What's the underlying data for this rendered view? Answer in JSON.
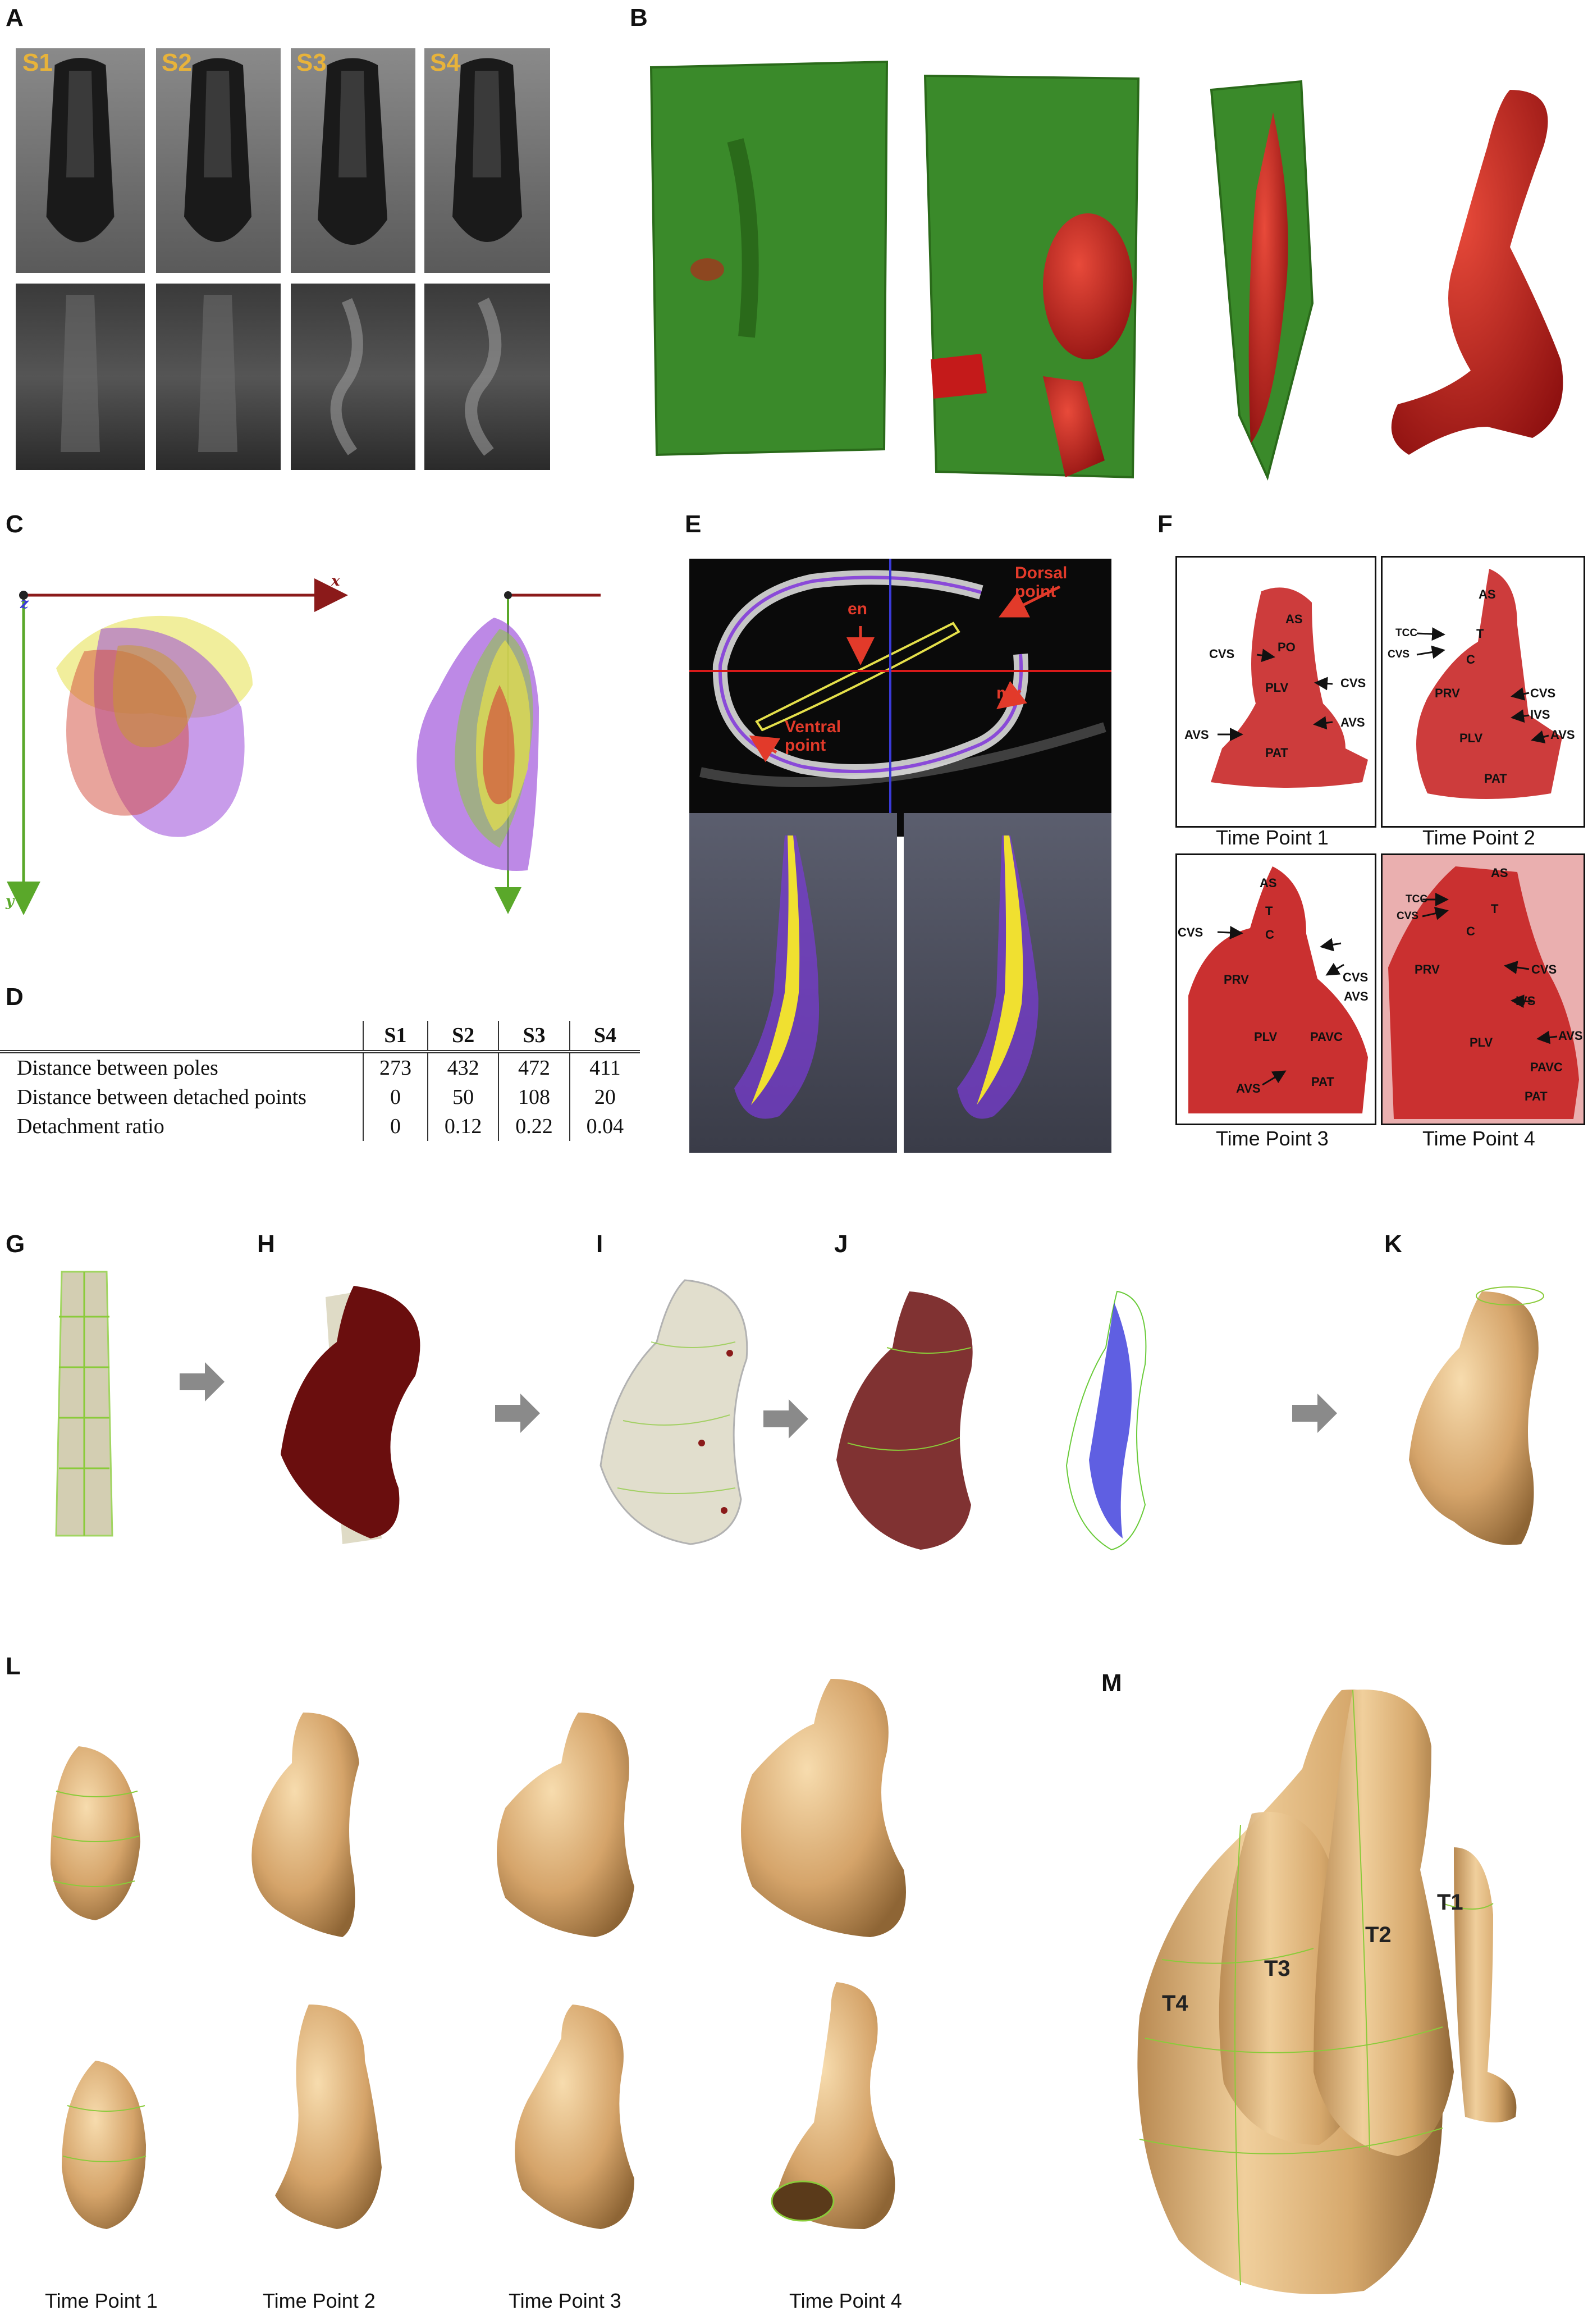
{
  "panels": {
    "A": "A",
    "B": "B",
    "C": "C",
    "D": "D",
    "E": "E",
    "F": "F",
    "G": "G",
    "H": "H",
    "I": "I",
    "J": "J",
    "K": "K",
    "L": "L",
    "M": "M"
  },
  "panel_a": {
    "stages": [
      "S1",
      "S2",
      "S3",
      "S4"
    ]
  },
  "panel_c": {
    "axis_x": "x",
    "axis_y": "y",
    "axis_z": "z"
  },
  "panel_d": {
    "columns": [
      "S1",
      "S2",
      "S3",
      "S4"
    ],
    "rows": [
      {
        "label": "Distance between poles",
        "values": [
          "273",
          "432",
          "472",
          "411"
        ]
      },
      {
        "label": "Distance between detached points",
        "values": [
          "0",
          "50",
          "108",
          "20"
        ]
      },
      {
        "label": "Detachment ratio",
        "values": [
          "0",
          "0.12",
          "0.22",
          "0.04"
        ]
      }
    ]
  },
  "panel_e": {
    "labels": {
      "dorsal": "Dorsal\npoint",
      "en": "en",
      "my": "my",
      "ventral": "Ventral\npoint"
    }
  },
  "panel_f": {
    "captions": [
      "Time Point 1",
      "Time Point 2",
      "Time Point 3",
      "Time Point 4"
    ],
    "tp1": {
      "as": "AS",
      "po": "PO",
      "cvs_l": "CVS",
      "cvs_r": "CVS",
      "plv": "PLV",
      "avs_l": "AVS",
      "avs_r": "AVS",
      "pat": "PAT"
    },
    "tp2": {
      "as": "AS",
      "tcc": "TCC",
      "t": "T",
      "cvs_l": "CVS",
      "c": "C",
      "prv": "PRV",
      "cvs_r": "CVS",
      "ivs": "IVS",
      "plv": "PLV",
      "avs": "AVS",
      "pat": "PAT"
    },
    "tp3": {
      "as": "AS",
      "t": "T",
      "cvs_l": "CVS",
      "c": "C",
      "prv": "PRV",
      "cvs_r": "CVS",
      "avs_r": "AVS",
      "plv": "PLV",
      "pavc": "PAVC",
      "avs_b": "AVS",
      "pat": "PAT"
    },
    "tp4": {
      "as": "AS",
      "tcc": "TCC",
      "cvs_l": "CVS",
      "t": "T",
      "c": "C",
      "prv": "PRV",
      "cvs_r": "CVS",
      "ivs": "IVS",
      "avs": "AVS",
      "plv": "PLV",
      "pavc": "PAVC",
      "pat": "PAT"
    }
  },
  "panel_l": {
    "captions": [
      "Time Point 1",
      "Time Point 2",
      "Time Point 3",
      "Time Point 4"
    ]
  },
  "panel_m": {
    "labels": [
      "T1",
      "T2",
      "T3",
      "T4"
    ]
  },
  "colors": {
    "tissue_green": "#3a8a2a",
    "heart_red": "#c41a1a",
    "model_tan": "#d9b07a",
    "mesh_green": "#8adf4a",
    "arrow_gray": "#8a8a8a",
    "label_red": "#e23a2a",
    "stage_gold": "#e8b33a"
  }
}
